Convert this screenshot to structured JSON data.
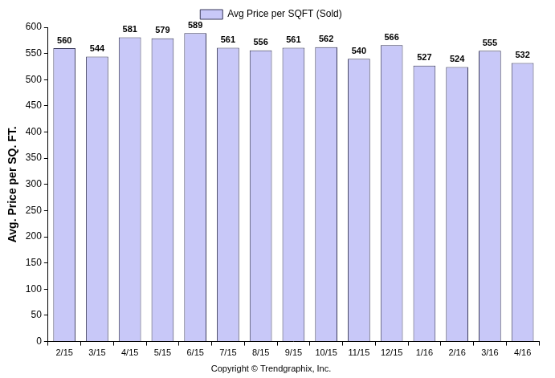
{
  "chart_data": {
    "type": "bar",
    "y_label": "Avg. Price per SQ. FT.",
    "annotations": [
      "Copyright © Trendgraphix, Inc."
    ],
    "categories": [
      "2/15",
      "3/15",
      "4/15",
      "5/15",
      "6/15",
      "7/15",
      "8/15",
      "9/15",
      "10/15",
      "11/15",
      "12/15",
      "1/16",
      "2/16",
      "3/16",
      "4/16"
    ],
    "series": [
      {
        "name": "Avg Price per SQFT (Sold)",
        "color": "#c8c8f8",
        "values": [
          560,
          544,
          581,
          579,
          589,
          561,
          556,
          561,
          562,
          540,
          566,
          527,
          524,
          555,
          532
        ]
      }
    ],
    "ylim": [
      0,
      600
    ],
    "yticks": [
      0,
      50,
      100,
      150,
      200,
      250,
      300,
      350,
      400,
      450,
      500,
      550,
      600
    ],
    "grid": false,
    "legend": "top",
    "data_labels": true
  }
}
